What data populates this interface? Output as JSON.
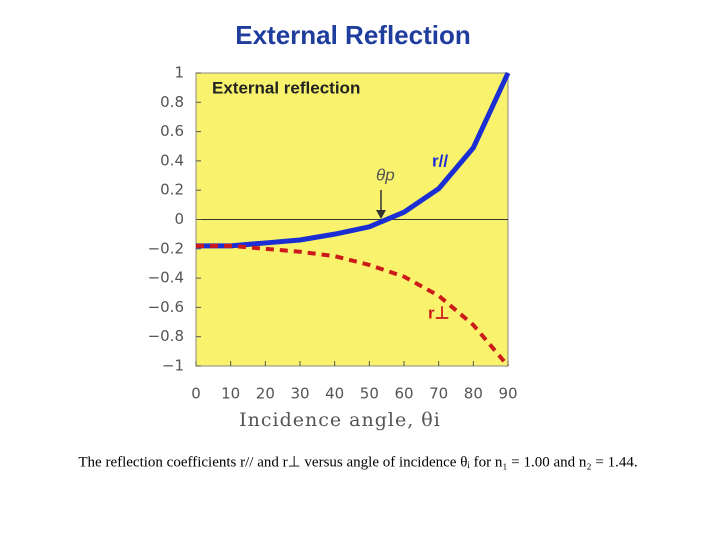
{
  "slide_title": "External Reflection",
  "caption": "The reflection coefficients r// and r⊥ versus angle of incidence θᵢ for n₁ = 1.00 and n₂ = 1.44.",
  "chart_data": {
    "type": "line",
    "title": "External reflection",
    "x_label": "Incidence angle, θi",
    "annotations": [
      "θp"
    ],
    "x": [
      0,
      10,
      20,
      30,
      40,
      50,
      60,
      70,
      80,
      90
    ],
    "series": [
      {
        "name": "r//",
        "color": "#1a2ed4",
        "dashed": false,
        "values": [
          -0.18,
          -0.18,
          -0.16,
          -0.14,
          -0.1,
          -0.05,
          0.05,
          0.21,
          0.49,
          1
        ]
      },
      {
        "name": "r⊥",
        "color": "#cc1a1a",
        "dashed": true,
        "values": [
          -0.18,
          -0.18,
          -0.2,
          -0.22,
          -0.25,
          -0.31,
          -0.39,
          -0.52,
          -0.72,
          -1
        ]
      }
    ],
    "xlim": [
      0,
      90
    ],
    "xticks": [
      0,
      10,
      20,
      30,
      40,
      50,
      60,
      70,
      80,
      90
    ],
    "ylim": [
      -1,
      1
    ],
    "yticks": [
      {
        "value": -1,
        "label": "−1"
      },
      {
        "value": -0.8,
        "label": "−0.8"
      },
      {
        "value": -0.6,
        "label": "−0.6"
      },
      {
        "value": -0.4,
        "label": "−0.4"
      },
      {
        "value": -0.2,
        "label": "−0.2"
      },
      0,
      0.2,
      0.4,
      0.6,
      0.8,
      1
    ],
    "grid": false,
    "background": "#f8f26c"
  }
}
